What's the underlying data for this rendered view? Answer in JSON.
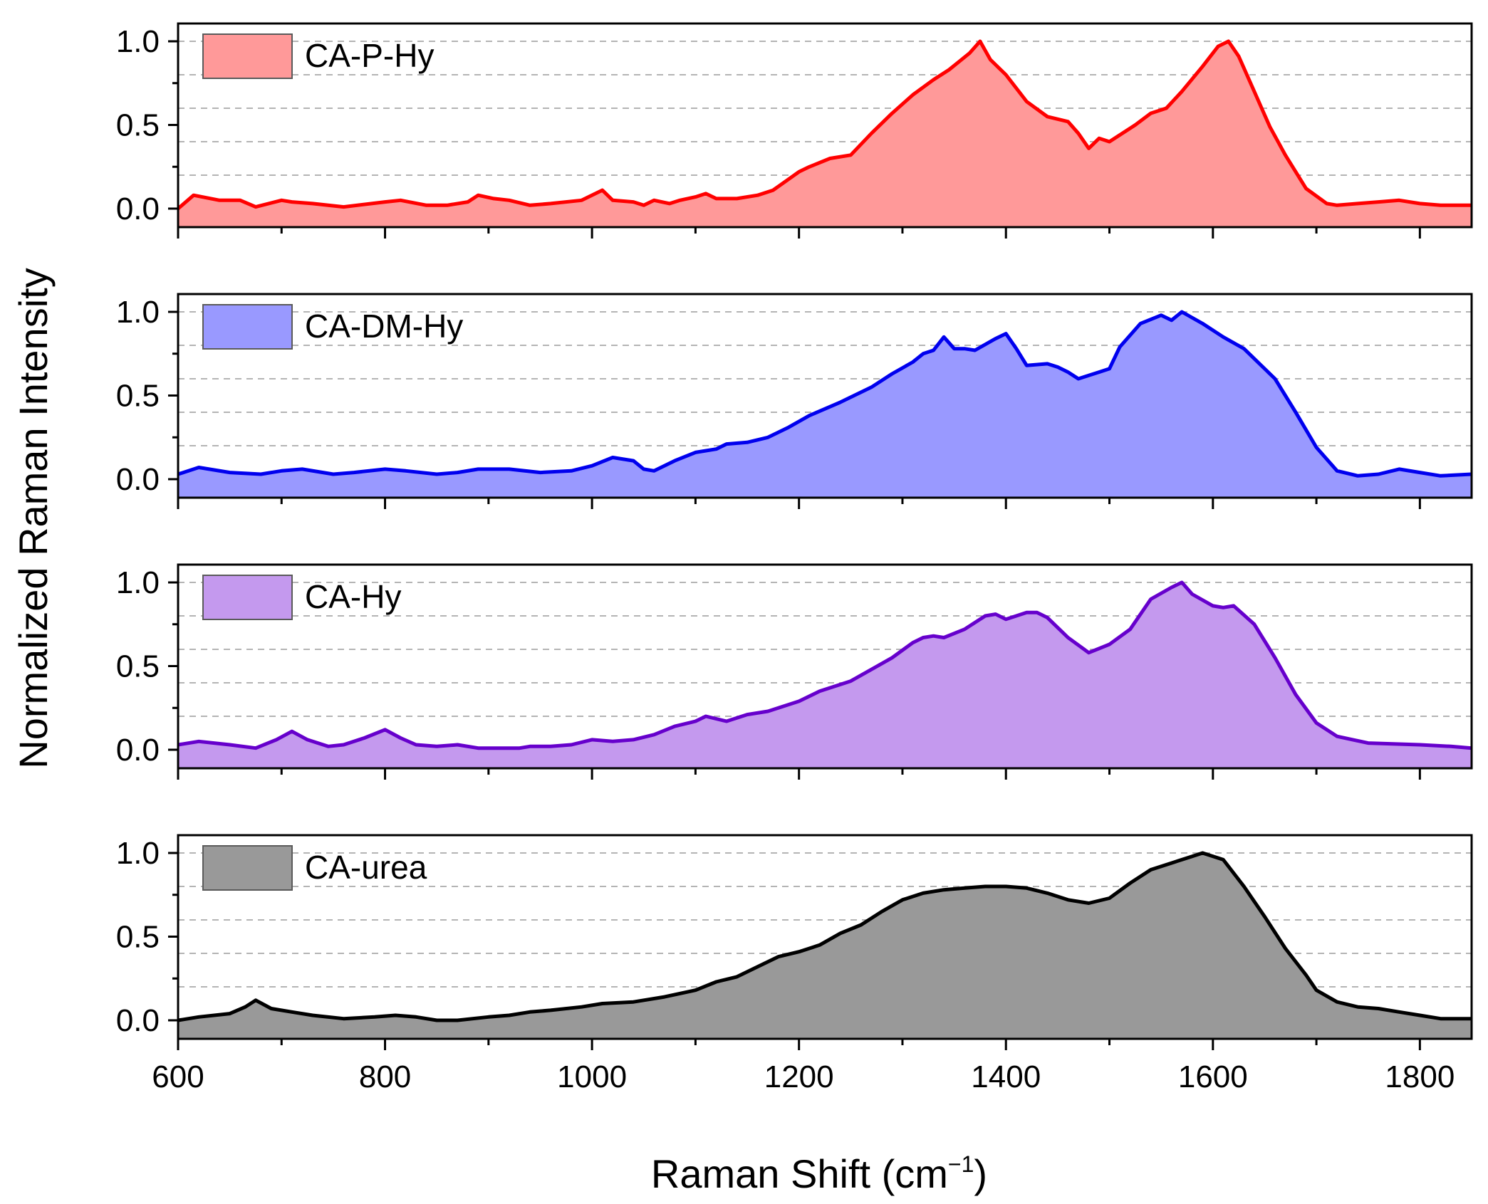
{
  "chart_data": {
    "type": "area",
    "xlabel": "Raman Shift (cm",
    "xlabel_unit_superscript": "−1",
    "xlabel_close": ")",
    "ylabel": "Normalized Raman Intensity",
    "xlim": [
      600,
      1850
    ],
    "ylim": [
      -0.1,
      1.1
    ],
    "x_ticks": [
      600,
      800,
      1000,
      1200,
      1400,
      1600,
      1800
    ],
    "x_tick_labels": [
      "600",
      "800",
      "1000",
      "1200",
      "1400",
      "1600",
      "1800"
    ],
    "y_ticks": [
      0.0,
      0.5,
      1.0
    ],
    "y_tick_labels": [
      "0.0",
      "0.5",
      "1.0"
    ],
    "grid": "dashed horizontal at 0.2, 0.4, 0.6, 0.8, 1.0",
    "series": [
      {
        "name": "CA-P-Hy",
        "line_color": "#ff0000",
        "fill_color": "#ff9999",
        "x": [
          600,
          615,
          640,
          660,
          675,
          700,
          710,
          730,
          760,
          800,
          815,
          840,
          860,
          880,
          890,
          905,
          920,
          940,
          960,
          990,
          1010,
          1020,
          1040,
          1050,
          1060,
          1075,
          1085,
          1100,
          1110,
          1120,
          1140,
          1160,
          1175,
          1200,
          1210,
          1230,
          1250,
          1270,
          1290,
          1310,
          1330,
          1345,
          1355,
          1365,
          1375,
          1385,
          1400,
          1420,
          1440,
          1460,
          1470,
          1480,
          1490,
          1500,
          1510,
          1525,
          1540,
          1555,
          1570,
          1590,
          1605,
          1615,
          1625,
          1640,
          1655,
          1670,
          1690,
          1710,
          1720,
          1740,
          1760,
          1780,
          1800,
          1820,
          1850
        ],
        "y": [
          0.0,
          0.08,
          0.05,
          0.05,
          0.01,
          0.05,
          0.04,
          0.03,
          0.01,
          0.04,
          0.05,
          0.02,
          0.02,
          0.04,
          0.08,
          0.06,
          0.05,
          0.02,
          0.03,
          0.05,
          0.11,
          0.05,
          0.04,
          0.02,
          0.05,
          0.03,
          0.05,
          0.07,
          0.09,
          0.06,
          0.06,
          0.08,
          0.11,
          0.22,
          0.25,
          0.3,
          0.32,
          0.45,
          0.57,
          0.68,
          0.77,
          0.83,
          0.88,
          0.93,
          1.0,
          0.89,
          0.8,
          0.64,
          0.55,
          0.52,
          0.45,
          0.36,
          0.42,
          0.4,
          0.44,
          0.5,
          0.57,
          0.6,
          0.7,
          0.85,
          0.97,
          1.0,
          0.91,
          0.7,
          0.49,
          0.32,
          0.12,
          0.03,
          0.02,
          0.03,
          0.04,
          0.05,
          0.03,
          0.02,
          0.02
        ]
      },
      {
        "name": "CA-DM-Hy",
        "line_color": "#0000ee",
        "fill_color": "#9999ff",
        "x": [
          600,
          620,
          650,
          680,
          700,
          720,
          750,
          770,
          800,
          820,
          850,
          870,
          890,
          920,
          950,
          980,
          1000,
          1020,
          1040,
          1050,
          1060,
          1080,
          1100,
          1120,
          1130,
          1150,
          1170,
          1190,
          1210,
          1240,
          1270,
          1290,
          1310,
          1320,
          1330,
          1340,
          1350,
          1360,
          1370,
          1390,
          1400,
          1410,
          1420,
          1440,
          1450,
          1460,
          1470,
          1480,
          1490,
          1500,
          1510,
          1530,
          1550,
          1560,
          1570,
          1590,
          1610,
          1630,
          1660,
          1680,
          1700,
          1720,
          1740,
          1760,
          1780,
          1800,
          1820,
          1850
        ],
        "y": [
          0.03,
          0.07,
          0.04,
          0.03,
          0.05,
          0.06,
          0.03,
          0.04,
          0.06,
          0.05,
          0.03,
          0.04,
          0.06,
          0.06,
          0.04,
          0.05,
          0.08,
          0.13,
          0.11,
          0.06,
          0.05,
          0.11,
          0.16,
          0.18,
          0.21,
          0.22,
          0.25,
          0.31,
          0.38,
          0.46,
          0.55,
          0.63,
          0.7,
          0.75,
          0.77,
          0.85,
          0.78,
          0.78,
          0.77,
          0.84,
          0.87,
          0.78,
          0.68,
          0.69,
          0.67,
          0.64,
          0.6,
          0.62,
          0.64,
          0.66,
          0.79,
          0.93,
          0.98,
          0.95,
          1.0,
          0.93,
          0.85,
          0.78,
          0.6,
          0.4,
          0.19,
          0.05,
          0.02,
          0.03,
          0.06,
          0.04,
          0.02,
          0.03
        ]
      },
      {
        "name": "CA-Hy",
        "line_color": "#6600cc",
        "fill_color": "#c499ee",
        "x": [
          600,
          620,
          650,
          675,
          695,
          710,
          725,
          745,
          760,
          780,
          800,
          815,
          830,
          850,
          870,
          890,
          910,
          930,
          940,
          960,
          980,
          1000,
          1020,
          1040,
          1060,
          1080,
          1100,
          1110,
          1130,
          1150,
          1170,
          1200,
          1220,
          1250,
          1270,
          1290,
          1310,
          1320,
          1330,
          1340,
          1360,
          1380,
          1390,
          1400,
          1410,
          1420,
          1430,
          1440,
          1460,
          1480,
          1500,
          1520,
          1540,
          1560,
          1570,
          1580,
          1600,
          1610,
          1620,
          1640,
          1660,
          1680,
          1700,
          1720,
          1750,
          1800,
          1830,
          1850
        ],
        "y": [
          0.03,
          0.05,
          0.03,
          0.01,
          0.06,
          0.11,
          0.06,
          0.02,
          0.03,
          0.07,
          0.12,
          0.07,
          0.03,
          0.02,
          0.03,
          0.01,
          0.01,
          0.01,
          0.02,
          0.02,
          0.03,
          0.06,
          0.05,
          0.06,
          0.09,
          0.14,
          0.17,
          0.2,
          0.17,
          0.21,
          0.23,
          0.29,
          0.35,
          0.41,
          0.48,
          0.55,
          0.64,
          0.67,
          0.68,
          0.67,
          0.72,
          0.8,
          0.81,
          0.78,
          0.8,
          0.82,
          0.82,
          0.79,
          0.67,
          0.58,
          0.63,
          0.72,
          0.9,
          0.97,
          1.0,
          0.93,
          0.86,
          0.85,
          0.86,
          0.75,
          0.55,
          0.33,
          0.16,
          0.08,
          0.04,
          0.03,
          0.02,
          0.01
        ]
      },
      {
        "name": "CA-urea",
        "line_color": "#000000",
        "fill_color": "#999999",
        "x": [
          600,
          620,
          650,
          665,
          675,
          690,
          710,
          730,
          760,
          790,
          810,
          830,
          850,
          870,
          900,
          920,
          940,
          960,
          990,
          1010,
          1040,
          1070,
          1100,
          1120,
          1140,
          1160,
          1180,
          1200,
          1220,
          1240,
          1260,
          1280,
          1300,
          1320,
          1340,
          1360,
          1380,
          1400,
          1420,
          1440,
          1460,
          1480,
          1500,
          1520,
          1540,
          1560,
          1580,
          1590,
          1610,
          1630,
          1650,
          1670,
          1690,
          1700,
          1720,
          1740,
          1760,
          1780,
          1800,
          1820,
          1850
        ],
        "y": [
          0.0,
          0.02,
          0.04,
          0.08,
          0.12,
          0.07,
          0.05,
          0.03,
          0.01,
          0.02,
          0.03,
          0.02,
          0.0,
          0.0,
          0.02,
          0.03,
          0.05,
          0.06,
          0.08,
          0.1,
          0.11,
          0.14,
          0.18,
          0.23,
          0.26,
          0.32,
          0.38,
          0.41,
          0.45,
          0.52,
          0.57,
          0.65,
          0.72,
          0.76,
          0.78,
          0.79,
          0.8,
          0.8,
          0.79,
          0.76,
          0.72,
          0.7,
          0.73,
          0.82,
          0.9,
          0.94,
          0.98,
          1.0,
          0.96,
          0.8,
          0.62,
          0.43,
          0.27,
          0.18,
          0.11,
          0.08,
          0.07,
          0.05,
          0.03,
          0.01,
          0.01
        ]
      }
    ]
  }
}
